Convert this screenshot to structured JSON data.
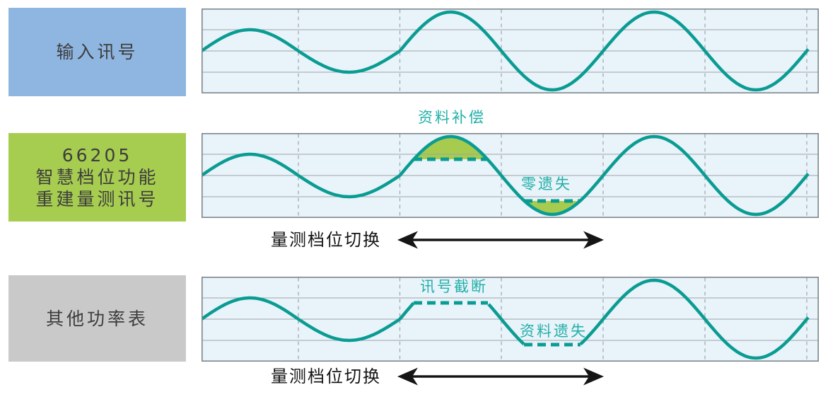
{
  "boxes": {
    "input": {
      "label": "输入讯号"
    },
    "smart": {
      "model": "66205",
      "line2": "智慧档位功能",
      "line3": "重建量测讯号"
    },
    "other": {
      "label": "其他功率表"
    }
  },
  "annotations": {
    "data_compensation": "资料补偿",
    "zero_loss": "零遗失",
    "signal_truncation": "讯号截断",
    "data_loss": "资料遗失"
  },
  "switch_labels": {
    "row_smart": "量测档位切换",
    "row_other": "量测档位切换"
  },
  "colors": {
    "wave": "#0a9c92",
    "annotation": "#24b0a8",
    "panel_bg": "#e8f3fa",
    "grid": "#a0a4a8",
    "border": "#7d868e",
    "fill_green": "#a6cb4e",
    "box_blue": "#8fb6e1",
    "box_green": "#a6cc50",
    "box_gray": "#c9c9c9",
    "box_text": "#3d3d3d",
    "arrow": "#151515"
  }
}
